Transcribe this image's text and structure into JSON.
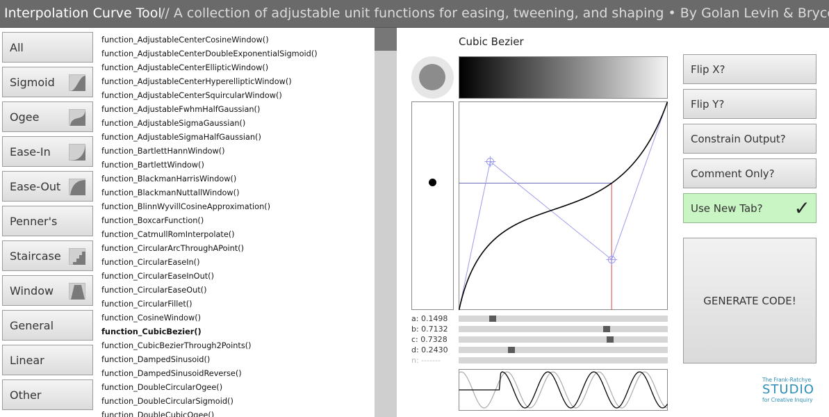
{
  "header": {
    "title": "Interpolation Curve Tool",
    "subtitle": "//  A collection of adjustable unit functions for easing, tweening, and shaping • By Golan Levin & Bryce Summers"
  },
  "categories": [
    {
      "label": "All",
      "icon": null
    },
    {
      "label": "Sigmoid",
      "icon": "sigmoid-icon"
    },
    {
      "label": "Ogee",
      "icon": "ogee-icon"
    },
    {
      "label": "Ease-In",
      "icon": "ease-in-icon"
    },
    {
      "label": "Ease-Out",
      "icon": "ease-out-icon"
    },
    {
      "label": "Penner's",
      "icon": null
    },
    {
      "label": "Staircase",
      "icon": "staircase-icon"
    },
    {
      "label": "Window",
      "icon": "window-icon"
    },
    {
      "label": "General",
      "icon": null
    },
    {
      "label": "Linear",
      "icon": null
    },
    {
      "label": "Other",
      "icon": null
    }
  ],
  "functions": [
    "function_AdjustableCenterCosineWindow()",
    "function_AdjustableCenterDoubleExponentialSigmoid()",
    "function_AdjustableCenterEllipticWindow()",
    "function_AdjustableCenterHyperellipticWindow()",
    "function_AdjustableCenterSquircularWindow()",
    "function_AdjustableFwhmHalfGaussian()",
    "function_AdjustableSigmaGaussian()",
    "function_AdjustableSigmaHalfGaussian()",
    "function_BartlettHannWindow()",
    "function_BartlettWindow()",
    "function_BlackmanHarrisWindow()",
    "function_BlackmanNuttallWindow()",
    "function_BlinnWyvillCosineApproximation()",
    "function_BoxcarFunction()",
    "function_CatmullRomInterpolate()",
    "function_CircularArcThroughAPoint()",
    "function_CircularEaseIn()",
    "function_CircularEaseInOut()",
    "function_CircularEaseOut()",
    "function_CircularFillet()",
    "function_CosineWindow()",
    "function_CubicBezier()",
    "function_CubicBezierThrough2Points()",
    "function_DampedSinusoid()",
    "function_DampedSinusoidReverse()",
    "function_DoubleCircularOgee()",
    "function_DoubleCircularSigmoid()",
    "function_DoubleCubicOgee()"
  ],
  "selected_function": "function_CubicBezier()",
  "curve": {
    "name": "Cubic Bezier",
    "control_points": {
      "a": 0.1498,
      "b": 0.7132,
      "c": 0.7328,
      "d": 0.243
    },
    "probe_y": 0.61
  },
  "params": [
    {
      "label": "a: 0.1498",
      "value": 0.1498,
      "enabled": true
    },
    {
      "label": "b: 0.7132",
      "value": 0.7132,
      "enabled": true
    },
    {
      "label": "c: 0.7328",
      "value": 0.7328,
      "enabled": true
    },
    {
      "label": "d: 0.2430",
      "value": 0.243,
      "enabled": true
    },
    {
      "label": "n: -------",
      "value": null,
      "enabled": false
    }
  ],
  "options": {
    "flip_x": "Flip X?",
    "flip_y": "Flip Y?",
    "constrain": "Constrain Output?",
    "comment_only": "Comment Only?",
    "new_tab": "Use New Tab?",
    "new_tab_checked": true,
    "check_mark": "✓",
    "generate": "GENERATE CODE!"
  },
  "logo": {
    "line1": "The Frank-Ratchye",
    "line2": "STUDIO",
    "line3": "for Creative Inquiry"
  },
  "colors": {
    "header_bg": "#6a6a6a",
    "control_line": "#9a9af0",
    "probe_line": "#e04040",
    "active_toggle": "#c9f5c4",
    "logo": "#2a8db5"
  }
}
